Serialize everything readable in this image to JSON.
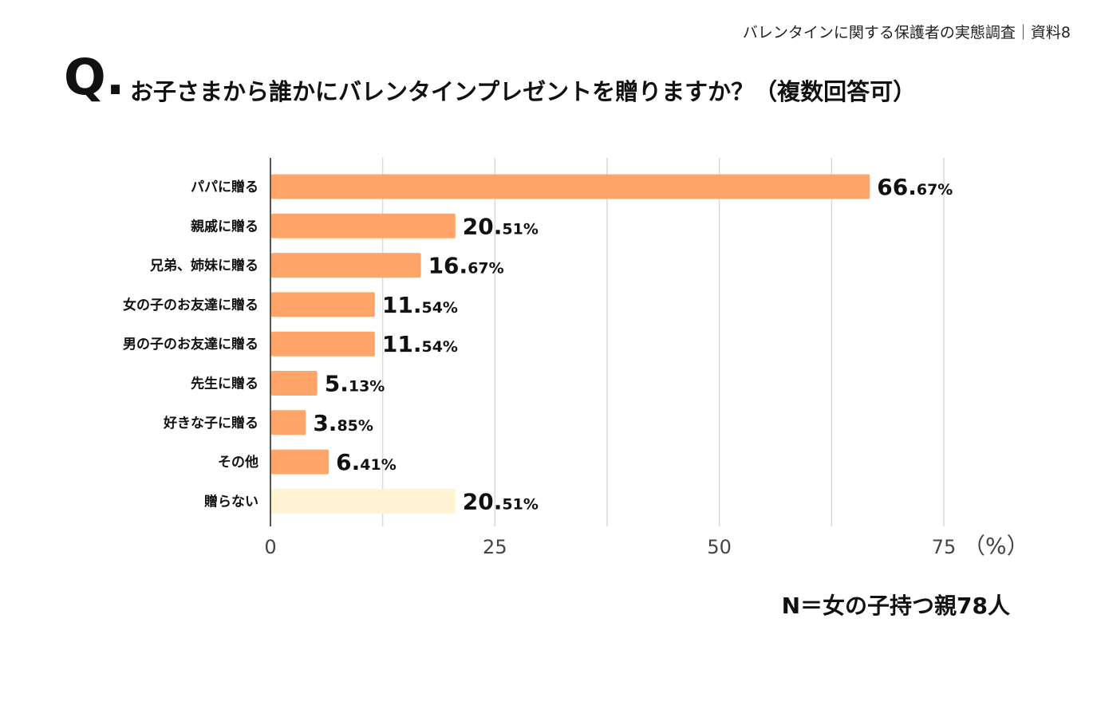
{
  "header": {
    "note": "バレンタインに関する保護者の実態調査｜資料8"
  },
  "question": {
    "mark": "Q.",
    "text": "お子さまから誰かにバレンタインプレゼントを贈りますか？（複数回答可）"
  },
  "footer": {
    "sample": "N＝女の子持つ親78人"
  },
  "chart_data": {
    "type": "bar",
    "orientation": "horizontal",
    "title": "お子さまから誰かにバレンタインプレゼントを贈りますか？（複数回答可）",
    "categories": [
      "パパに贈る",
      "親戚に贈る",
      "兄弟、姉妹に贈る",
      "女の子のお友達に贈る",
      "男の子のお友達に贈る",
      "先生に贈る",
      "好きな子に贈る",
      "その他",
      "贈らない"
    ],
    "values": [
      66.67,
      20.51,
      16.67,
      11.54,
      11.54,
      5.13,
      3.85,
      6.41,
      20.51
    ],
    "value_labels": [
      {
        "int": "66.",
        "dec": "67%"
      },
      {
        "int": "20.",
        "dec": "51%"
      },
      {
        "int": "16.",
        "dec": "67%"
      },
      {
        "int": "11.",
        "dec": "54%"
      },
      {
        "int": "11.",
        "dec": "54%"
      },
      {
        "int": "5.",
        "dec": "13%"
      },
      {
        "int": "3.",
        "dec": "85%"
      },
      {
        "int": "6.",
        "dec": "41%"
      },
      {
        "int": "20.",
        "dec": "51%"
      }
    ],
    "bar_colors": [
      "#FFA56A",
      "#FFA56A",
      "#FFA56A",
      "#FFA56A",
      "#FFA56A",
      "#FFA56A",
      "#FFA56A",
      "#FFA56A",
      "#FFF3D3"
    ],
    "xlim": [
      0,
      75
    ],
    "xticks": [
      0,
      25,
      50,
      75
    ],
    "xunit": "（%）",
    "grid": true
  },
  "colors": {
    "bar": "#FFA56A",
    "bar_none": "#FFF3D3",
    "grid": "#d9d9d9",
    "axis": "#555555"
  }
}
